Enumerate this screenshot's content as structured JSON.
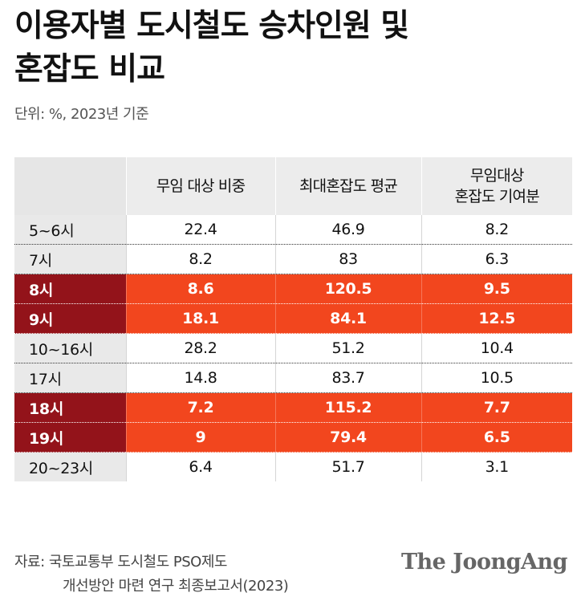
{
  "chart_data": {
    "type": "table",
    "title_line1": "이용자별 도시철도 승차인원 및",
    "title_line2": "혼잡도 비교",
    "unit_note": "단위: %, 2023년 기준",
    "columns": [
      "무임 대상 비중",
      "최대혼잡도 평균",
      "무임대상",
      "혼잡도 기여분"
    ],
    "rows": [
      {
        "time": "5~6시",
        "share": "22.4",
        "congestion": "46.9",
        "contribution": "8.2",
        "highlight": false
      },
      {
        "time": "7시",
        "share": "8.2",
        "congestion": "83",
        "contribution": "6.3",
        "highlight": false
      },
      {
        "time": "8시",
        "share": "8.6",
        "congestion": "120.5",
        "contribution": "9.5",
        "highlight": true
      },
      {
        "time": "9시",
        "share": "18.1",
        "congestion": "84.1",
        "contribution": "12.5",
        "highlight": true
      },
      {
        "time": "10~16시",
        "share": "28.2",
        "congestion": "51.2",
        "contribution": "10.4",
        "highlight": false
      },
      {
        "time": "17시",
        "share": "14.8",
        "congestion": "83.7",
        "contribution": "10.5",
        "highlight": false
      },
      {
        "time": "18시",
        "share": "7.2",
        "congestion": "115.2",
        "contribution": "7.7",
        "highlight": true
      },
      {
        "time": "19시",
        "share": "9",
        "congestion": "79.4",
        "contribution": "6.5",
        "highlight": true
      },
      {
        "time": "20~23시",
        "share": "6.4",
        "congestion": "51.7",
        "contribution": "3.1",
        "highlight": false
      }
    ],
    "colors": {
      "highlight_row": "#f2461e",
      "highlight_time_cell": "#93131a",
      "header_bg": "#ececec"
    }
  },
  "source_line1": "자료: 국토교통부 도시철도 PSO제도",
  "source_line2": "개선방안 마련 연구 최종보고서(2023)",
  "logo_text": "The JoongAng"
}
